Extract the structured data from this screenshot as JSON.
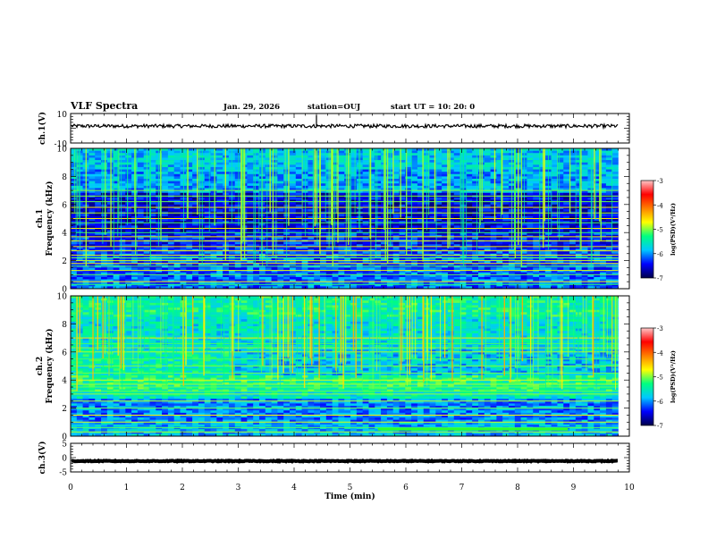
{
  "header": {
    "title": "VLF Spectra",
    "date": "Jan. 29, 2026",
    "station": "station=OUJ",
    "start_ut": "start  UT  =   10: 20: 0"
  },
  "colors": {
    "background": "#ffffff",
    "spectrogram_base": "#0a1a8c",
    "line_trace": "#000000"
  },
  "chart_data": [
    {
      "type": "line",
      "name": "ch1-waveform",
      "ylabel": "ch.1(V)",
      "ylim": [
        -10,
        10
      ],
      "yticks": [
        "10",
        "-10"
      ],
      "xlim": [
        0,
        10
      ],
      "baseline": 1.5,
      "noise_amplitude": 1.2
    },
    {
      "type": "heatmap",
      "name": "ch1-spectrogram",
      "ylabel_line1": "ch.1",
      "ylabel_line2": "Frequency  (kHz)",
      "ylim": [
        0,
        10
      ],
      "yticks": [
        "0",
        "2",
        "4",
        "6",
        "8",
        "10"
      ],
      "xlim": [
        0,
        10
      ],
      "data_extent_min": 9.8,
      "colorbar": {
        "label": "log(PSD)(V²/Hz)",
        "range": [
          -7,
          -3
        ],
        "ticks": [
          "-3",
          "-4",
          "-5",
          "-6",
          "-7"
        ],
        "colorscale": [
          "#00004a",
          "#0000ff",
          "#00c8ff",
          "#00ff80",
          "#ffff00",
          "#ff8000",
          "#ff0000",
          "#ffc8c8"
        ]
      },
      "constant_lines_khz": [
        0.3,
        0.5,
        1.0,
        1.3,
        1.6,
        1.8,
        2.0,
        2.2,
        2.4,
        2.7,
        3.0,
        3.4,
        3.7,
        4.0,
        4.3,
        4.7,
        5.0,
        5.4,
        5.8,
        6.2,
        6.6,
        7.0
      ]
    },
    {
      "type": "heatmap",
      "name": "ch2-spectrogram",
      "ylabel_line1": "ch.2",
      "ylabel_line2": "Frequency  (kHz)",
      "ylim": [
        0,
        10
      ],
      "yticks": [
        "0",
        "2",
        "4",
        "6",
        "8",
        "10"
      ],
      "xlim": [
        0,
        10
      ],
      "data_extent_min": 9.8,
      "colorbar": {
        "label": "log(PSD)(V²/Hz)",
        "range": [
          -7,
          -3
        ],
        "ticks": [
          "-3",
          "-4",
          "-5",
          "-6",
          "-7"
        ],
        "colorscale": [
          "#00004a",
          "#0000ff",
          "#00c8ff",
          "#00ff80",
          "#ffff00",
          "#ff8000",
          "#ff0000",
          "#ffc8c8"
        ]
      },
      "constant_lines_khz": [
        0.3,
        0.6,
        1.0,
        1.5,
        2.0,
        2.5,
        3.0,
        3.2,
        3.5,
        3.7,
        4.0,
        4.5,
        5.0,
        5.5,
        6.0,
        6.3,
        6.6,
        7.0
      ]
    },
    {
      "type": "line",
      "name": "ch3-waveform",
      "ylabel": "ch.3(V)",
      "ylim": [
        -5,
        5
      ],
      "yticks": [
        "5",
        "0",
        "-5"
      ],
      "xlim": [
        0,
        10
      ],
      "baseline": -1.2,
      "noise_amplitude": 0.15
    }
  ],
  "x_axis": {
    "label": "Time  (min)",
    "ticks": [
      "0",
      "1",
      "2",
      "3",
      "4",
      "5",
      "6",
      "7",
      "8",
      "9",
      "10"
    ]
  }
}
